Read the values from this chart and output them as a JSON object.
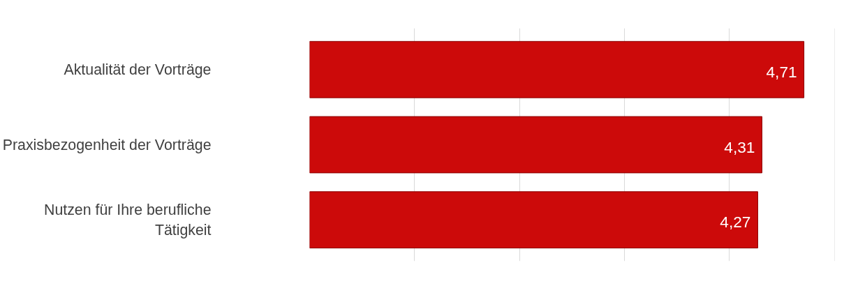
{
  "chart_data": {
    "type": "bar",
    "orientation": "horizontal",
    "categories": [
      "Aktualität der Vorträge",
      "Praxisbezogenheit der Vorträge",
      "Nutzen für Ihre berufliche Tätigkeit"
    ],
    "values": [
      4.71,
      4.31,
      4.27
    ],
    "color": "#cc0a0a",
    "value_labels": [
      "4,71",
      "4,31",
      "4,27"
    ],
    "grid": "x",
    "tick_labels": "y"
  }
}
